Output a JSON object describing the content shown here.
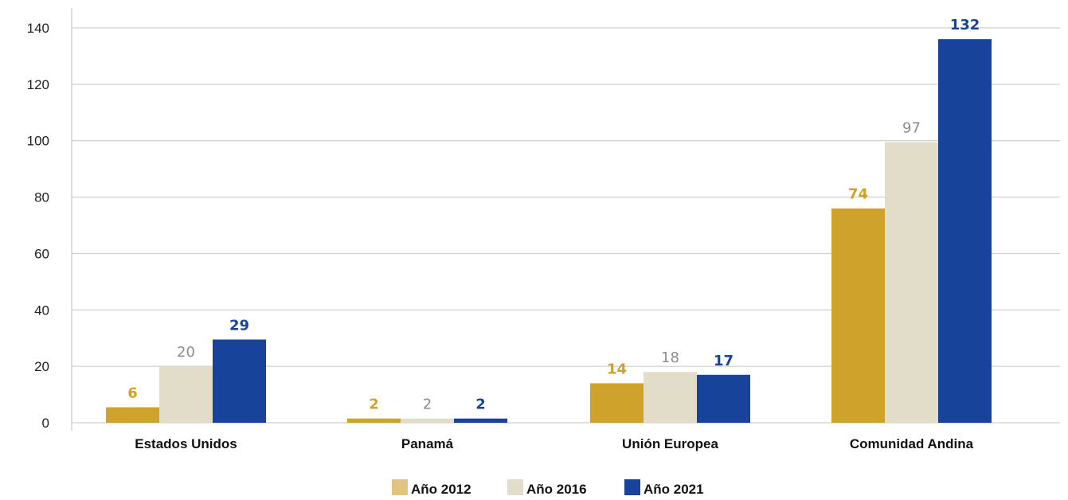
{
  "chart_data": {
    "type": "bar",
    "categories": [
      "Estados Unidos",
      "Panamá",
      "Unión Europea",
      "Comunidad Andina"
    ],
    "series": [
      {
        "name": "Año 2012",
        "values": [
          6,
          2,
          14,
          74
        ],
        "color": "#CFA32B",
        "label_color": "#CFA32B",
        "legend_color": "#E2C481"
      },
      {
        "name": "Año 2016",
        "values": [
          20,
          2,
          18,
          97
        ],
        "color": "#E2DDC9",
        "label_color": "#8C8C8C",
        "legend_color": "#E2DDC9"
      },
      {
        "name": "Año 2021",
        "values": [
          29,
          2,
          17,
          132
        ],
        "color": "#17449A",
        "label_color": "#17449A",
        "legend_color": "#17449A"
      }
    ],
    "bar_heights_estimated": [
      [
        5.5,
        1.5,
        14,
        76
      ],
      [
        20,
        1.5,
        18,
        99.5
      ],
      [
        29.5,
        1.5,
        17,
        136
      ]
    ],
    "yticks": [
      0,
      20,
      40,
      60,
      80,
      100,
      120,
      140
    ],
    "ylim": [
      0,
      150
    ],
    "grid": true,
    "legend_position": "bottom-center",
    "title": "",
    "xlabel": "",
    "ylabel": ""
  }
}
